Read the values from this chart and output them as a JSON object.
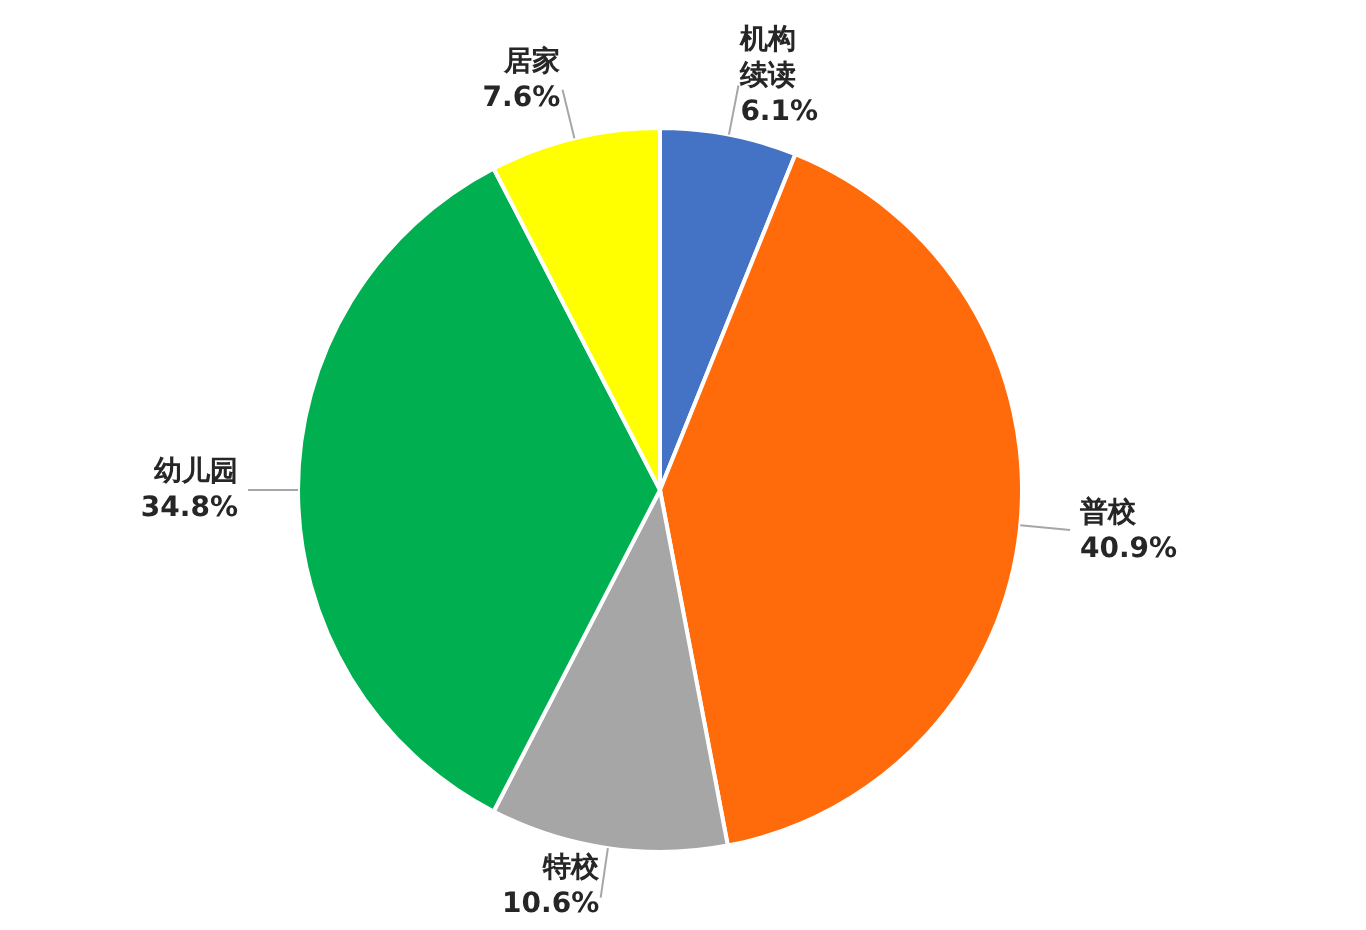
{
  "chart_data": {
    "type": "pie",
    "categories": [
      "机构续读",
      "普校",
      "特校",
      "幼儿园",
      "居家"
    ],
    "values": [
      6.1,
      40.9,
      10.6,
      34.8,
      7.6
    ],
    "value_labels": [
      "6.1%",
      "40.9%",
      "10.6%",
      "34.8%",
      "7.6%"
    ],
    "colors": [
      "#4472c4",
      "#ff6a0a",
      "#a6a6a6",
      "#00b050",
      "#ffff00"
    ]
  }
}
